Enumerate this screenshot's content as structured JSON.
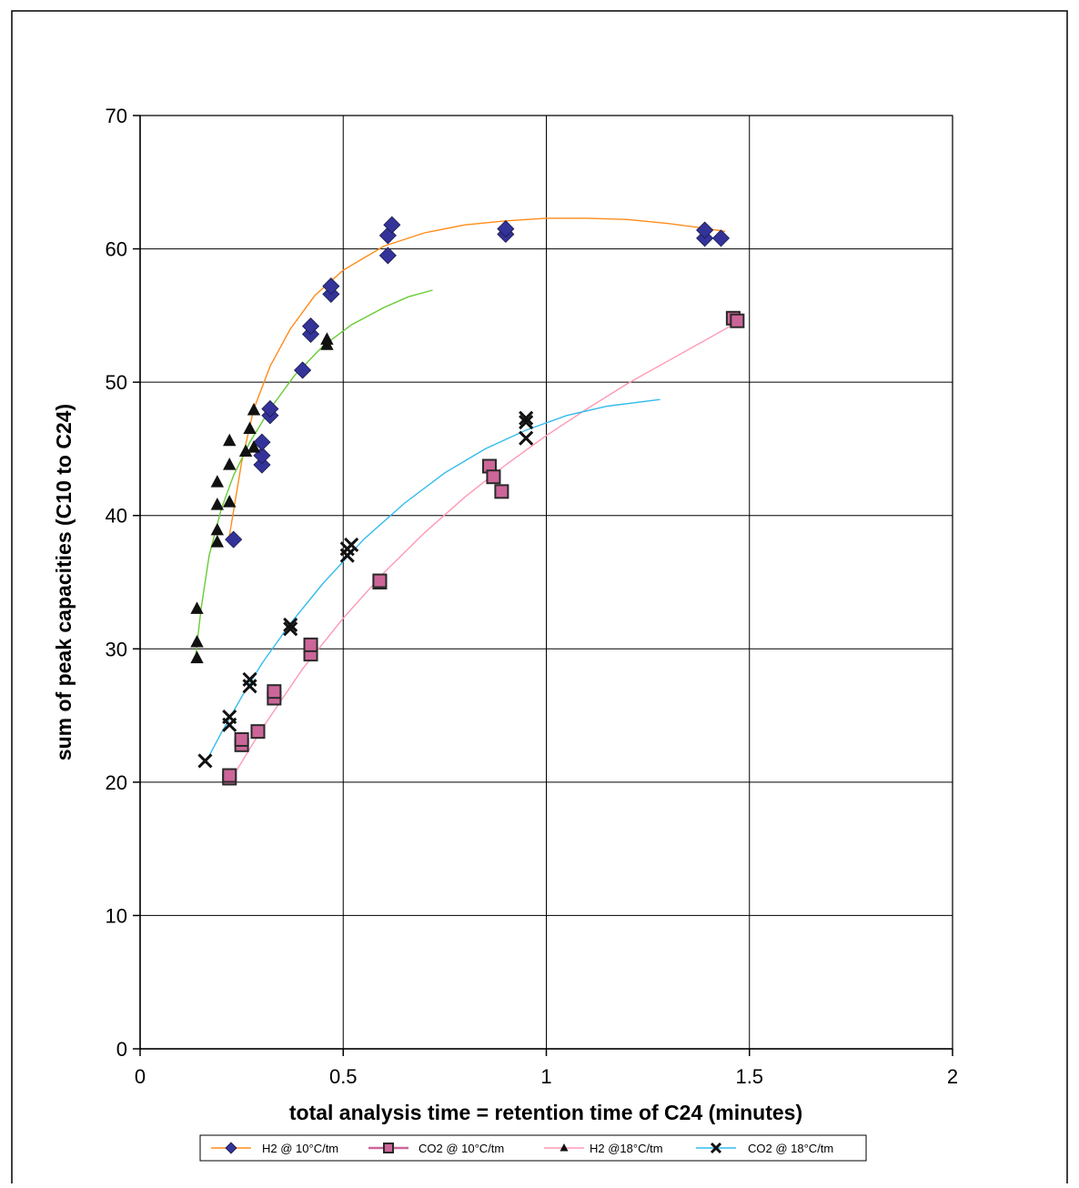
{
  "chart_data": {
    "type": "scatter",
    "title": "",
    "xlabel": "total analysis time = retention time of C24 (minutes)",
    "ylabel": "sum of peak capacities (C10 to C24)",
    "xlim": [
      0,
      2
    ],
    "ylim": [
      0,
      70
    ],
    "x_ticks": [
      "0",
      "0.5",
      "1",
      "1.5",
      "2"
    ],
    "y_ticks": [
      "0",
      "10",
      "20",
      "30",
      "40",
      "50",
      "60",
      "70"
    ],
    "grid": true,
    "legend_position": "bottom",
    "colors": {
      "h2_10_marker": "#333399",
      "co2_10_marker": "#cc6699",
      "h2_18_marker": "#111111",
      "co2_18_marker": "#111111",
      "fit_h2_10": "#ff8c1a",
      "fit_co2_10": "#ff99b3",
      "fit_h2_18": "#66cc33",
      "fit_co2_18": "#33bbee"
    },
    "series": [
      {
        "name": "H2 @ 10°C/tm",
        "marker": "diamond",
        "points": [
          [
            0.23,
            38.2
          ],
          [
            0.3,
            43.8
          ],
          [
            0.3,
            44.5
          ],
          [
            0.3,
            45.5
          ],
          [
            0.32,
            47.5
          ],
          [
            0.32,
            48.0
          ],
          [
            0.4,
            50.9
          ],
          [
            0.42,
            53.6
          ],
          [
            0.42,
            54.2
          ],
          [
            0.47,
            56.6
          ],
          [
            0.47,
            57.2
          ],
          [
            0.61,
            59.5
          ],
          [
            0.61,
            61.0
          ],
          [
            0.62,
            61.8
          ],
          [
            0.9,
            61.1
          ],
          [
            0.9,
            61.5
          ],
          [
            1.39,
            60.8
          ],
          [
            1.39,
            61.4
          ],
          [
            1.43,
            60.8
          ]
        ]
      },
      {
        "name": "CO2 @ 10°C/tm",
        "marker": "square",
        "points": [
          [
            0.22,
            20.3
          ],
          [
            0.22,
            20.5
          ],
          [
            0.25,
            22.8
          ],
          [
            0.25,
            23.2
          ],
          [
            0.29,
            23.8
          ],
          [
            0.33,
            26.3
          ],
          [
            0.33,
            26.8
          ],
          [
            0.42,
            29.6
          ],
          [
            0.42,
            30.3
          ],
          [
            0.59,
            35.0
          ],
          [
            0.59,
            35.1
          ],
          [
            0.86,
            43.7
          ],
          [
            0.87,
            42.9
          ],
          [
            0.89,
            41.8
          ],
          [
            1.46,
            54.8
          ],
          [
            1.47,
            54.6
          ]
        ]
      },
      {
        "name": "H2 @18°C/tm",
        "marker": "triangle",
        "points": [
          [
            0.14,
            29.3
          ],
          [
            0.14,
            30.5
          ],
          [
            0.14,
            33.0
          ],
          [
            0.19,
            38.0
          ],
          [
            0.19,
            38.9
          ],
          [
            0.19,
            40.8
          ],
          [
            0.19,
            42.5
          ],
          [
            0.22,
            41.0
          ],
          [
            0.22,
            43.8
          ],
          [
            0.22,
            45.6
          ],
          [
            0.26,
            44.8
          ],
          [
            0.27,
            46.5
          ],
          [
            0.28,
            45.1
          ],
          [
            0.28,
            47.9
          ],
          [
            0.46,
            52.8
          ],
          [
            0.46,
            53.2
          ]
        ]
      },
      {
        "name": "CO2 @ 18°C/tm",
        "marker": "x",
        "points": [
          [
            0.16,
            21.6
          ],
          [
            0.22,
            24.3
          ],
          [
            0.22,
            24.9
          ],
          [
            0.27,
            27.2
          ],
          [
            0.27,
            27.7
          ],
          [
            0.37,
            31.5
          ],
          [
            0.37,
            31.8
          ],
          [
            0.51,
            37.0
          ],
          [
            0.51,
            37.5
          ],
          [
            0.52,
            37.8
          ],
          [
            0.95,
            45.8
          ],
          [
            0.95,
            47.0
          ],
          [
            0.95,
            47.3
          ]
        ]
      }
    ],
    "trendlines": [
      {
        "series": "H2 @ 10°C/tm",
        "x": [
          0.22,
          0.25,
          0.28,
          0.32,
          0.37,
          0.43,
          0.5,
          0.6,
          0.7,
          0.8,
          0.9,
          1.0,
          1.1,
          1.2,
          1.3,
          1.4,
          1.44
        ],
        "y": [
          38.5,
          44.0,
          48.0,
          51.2,
          54.0,
          56.5,
          58.4,
          60.2,
          61.2,
          61.8,
          62.1,
          62.3,
          62.3,
          62.2,
          61.9,
          61.5,
          61.3
        ]
      },
      {
        "series": "CO2 @ 10°C/tm",
        "x": [
          0.22,
          0.3,
          0.4,
          0.5,
          0.6,
          0.7,
          0.8,
          0.9,
          1.0,
          1.1,
          1.2,
          1.3,
          1.4,
          1.47
        ],
        "y": [
          20.0,
          24.0,
          28.5,
          32.3,
          35.7,
          38.7,
          41.4,
          43.8,
          46.0,
          48.0,
          49.9,
          51.6,
          53.3,
          54.5
        ]
      },
      {
        "series": "H2 @18°C/tm",
        "x": [
          0.135,
          0.15,
          0.17,
          0.2,
          0.23,
          0.27,
          0.32,
          0.38,
          0.45,
          0.52,
          0.6,
          0.66,
          0.72
        ],
        "y": [
          29.0,
          33.0,
          37.0,
          40.5,
          43.0,
          45.5,
          48.0,
          50.5,
          52.7,
          54.3,
          55.6,
          56.4,
          56.9
        ]
      },
      {
        "series": "CO2 @ 18°C/tm",
        "x": [
          0.16,
          0.2,
          0.25,
          0.3,
          0.37,
          0.45,
          0.55,
          0.65,
          0.75,
          0.85,
          0.95,
          1.05,
          1.15,
          1.28
        ],
        "y": [
          21.4,
          23.7,
          26.4,
          28.9,
          31.9,
          34.9,
          38.2,
          40.9,
          43.2,
          45.0,
          46.4,
          47.5,
          48.2,
          48.7
        ]
      }
    ]
  }
}
